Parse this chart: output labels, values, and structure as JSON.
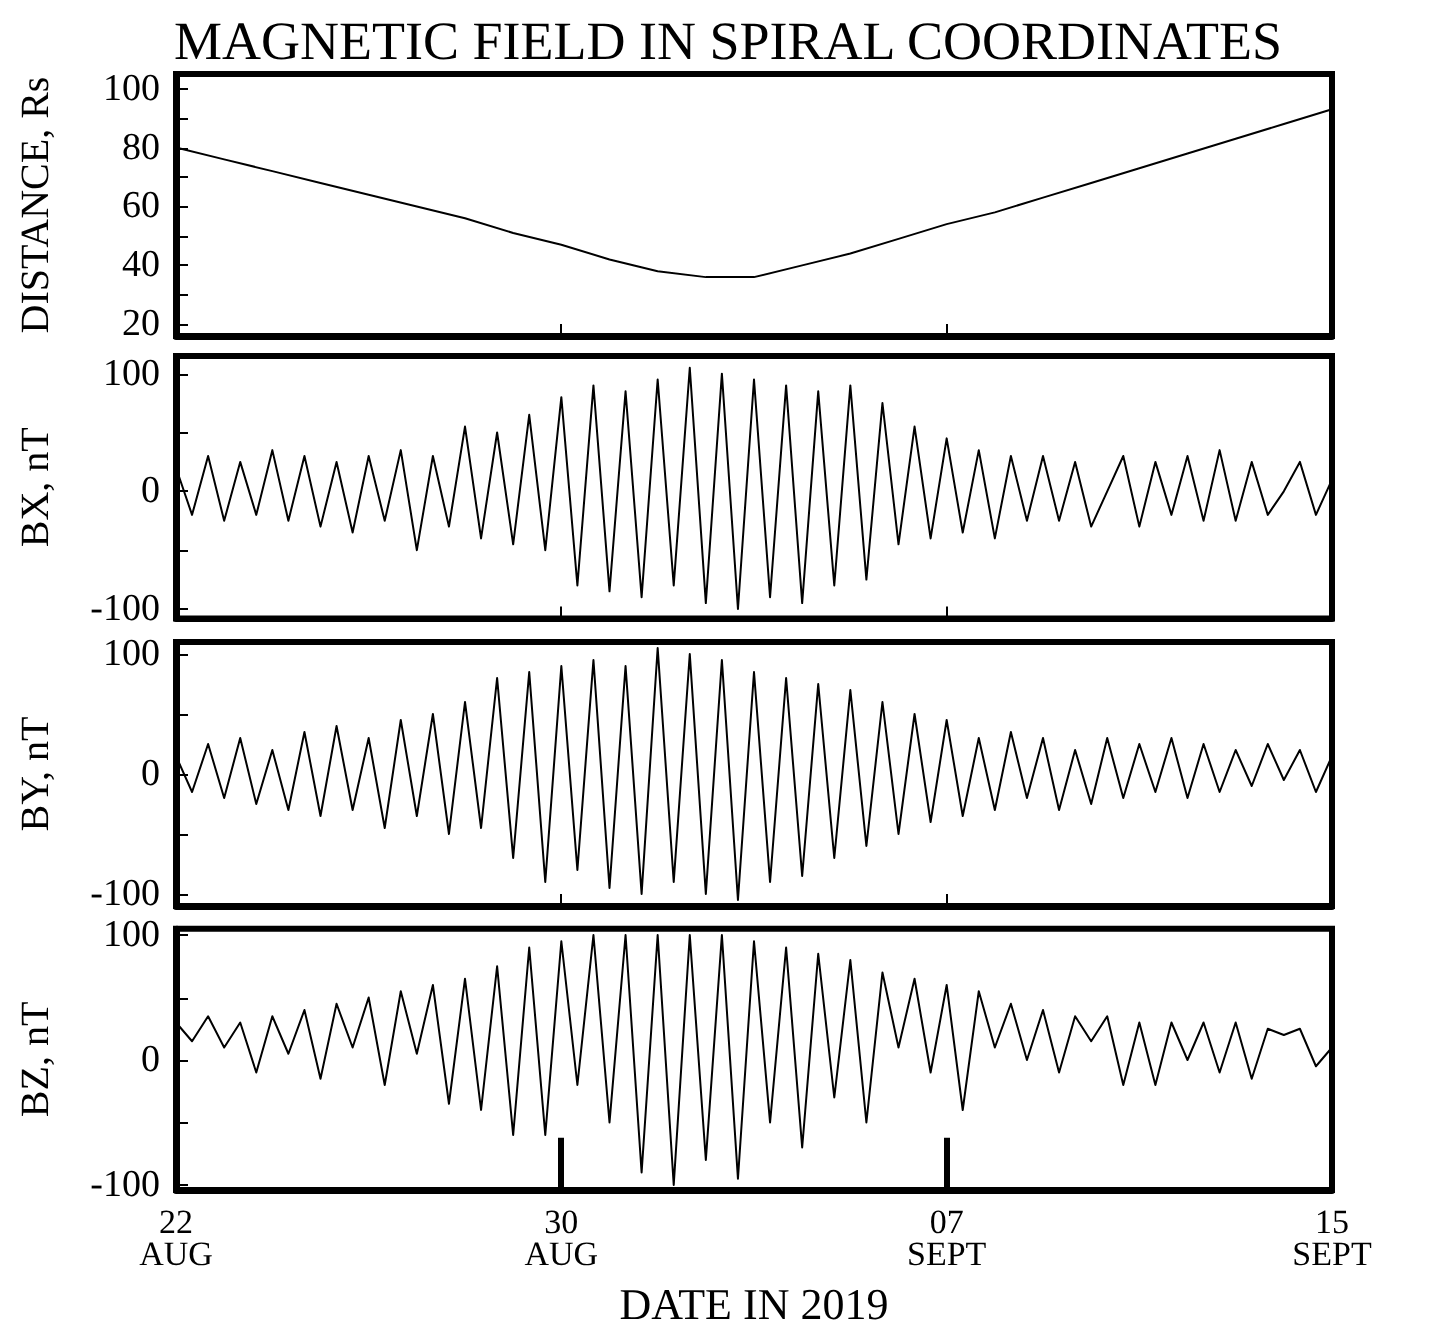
{
  "chart_data": [
    {
      "type": "line",
      "title": "MAGNETIC FIELD IN SPIRAL COORDINATES",
      "ylabel": "DISTANCE, Rs",
      "tick_labels": "y",
      "xlim": [
        "2019-08-22",
        "2019-09-15"
      ],
      "xticks": [
        {
          "value": "2019-08-22",
          "label": null
        },
        {
          "value": "2019-08-30",
          "label": null
        },
        {
          "value": "2019-09-07",
          "label": null
        },
        {
          "value": "2019-09-15",
          "label": null
        }
      ],
      "ylim": [
        16,
        105
      ],
      "yticks": [
        20,
        {
          "value": 30,
          "label": null
        },
        40,
        {
          "value": 50,
          "label": null
        },
        60,
        {
          "value": 70,
          "label": null
        },
        80,
        {
          "value": 90,
          "label": null
        },
        100
      ],
      "x": [
        "2019-08-22",
        "2019-08-23",
        "2019-08-24",
        "2019-08-25",
        "2019-08-26",
        "2019-08-27",
        "2019-08-28",
        "2019-08-29",
        "2019-08-30",
        "2019-08-31",
        "2019-09-01",
        "2019-09-02",
        "2019-09-03",
        "2019-09-04",
        "2019-09-05",
        "2019-09-06",
        "2019-09-07",
        "2019-09-08",
        "2019-09-09",
        "2019-09-10",
        "2019-09-11",
        "2019-09-12",
        "2019-09-13",
        "2019-09-14",
        "2019-09-15"
      ],
      "series": [
        {
          "color": "#000000",
          "values": [
            80,
            76,
            72,
            68,
            64,
            60,
            56,
            51,
            47,
            42,
            38,
            36,
            36,
            40,
            44,
            49,
            54,
            58,
            63,
            68,
            73,
            78,
            83,
            88,
            93
          ]
        }
      ]
    },
    {
      "type": "line",
      "ylabel": "BX, nT",
      "tick_labels": "y",
      "xlim": [
        "2019-08-22",
        "2019-09-15"
      ],
      "xticks": [
        {
          "value": "2019-08-22",
          "label": null
        },
        {
          "value": "2019-08-30",
          "label": null
        },
        {
          "value": "2019-09-07",
          "label": null
        },
        {
          "value": "2019-09-15",
          "label": null
        }
      ],
      "ylim": [
        -108,
        115
      ],
      "yticks": [
        -100,
        {
          "value": -50,
          "label": null
        },
        0,
        {
          "value": 50,
          "label": null
        },
        100
      ],
      "x": [
        "2019-08-22T00:00",
        "2019-08-22T08:00",
        "2019-08-22T16:00",
        "2019-08-23T00:00",
        "2019-08-23T08:00",
        "2019-08-23T16:00",
        "2019-08-24T00:00",
        "2019-08-24T08:00",
        "2019-08-24T16:00",
        "2019-08-25T00:00",
        "2019-08-25T08:00",
        "2019-08-25T16:00",
        "2019-08-26T00:00",
        "2019-08-26T08:00",
        "2019-08-26T16:00",
        "2019-08-27T00:00",
        "2019-08-27T08:00",
        "2019-08-27T16:00",
        "2019-08-28T00:00",
        "2019-08-28T08:00",
        "2019-08-28T16:00",
        "2019-08-29T00:00",
        "2019-08-29T08:00",
        "2019-08-29T16:00",
        "2019-08-30T00:00",
        "2019-08-30T08:00",
        "2019-08-30T16:00",
        "2019-08-31T00:00",
        "2019-08-31T08:00",
        "2019-08-31T16:00",
        "2019-09-01T00:00",
        "2019-09-01T08:00",
        "2019-09-01T16:00",
        "2019-09-02T00:00",
        "2019-09-02T08:00",
        "2019-09-02T16:00",
        "2019-09-03T00:00",
        "2019-09-03T08:00",
        "2019-09-03T16:00",
        "2019-09-04T00:00",
        "2019-09-04T08:00",
        "2019-09-04T16:00",
        "2019-09-05T00:00",
        "2019-09-05T08:00",
        "2019-09-05T16:00",
        "2019-09-06T00:00",
        "2019-09-06T08:00",
        "2019-09-06T16:00",
        "2019-09-07T00:00",
        "2019-09-07T08:00",
        "2019-09-07T16:00",
        "2019-09-08T00:00",
        "2019-09-08T08:00",
        "2019-09-08T16:00",
        "2019-09-09T00:00",
        "2019-09-09T08:00",
        "2019-09-09T16:00",
        "2019-09-10T00:00",
        "2019-09-10T08:00",
        "2019-09-10T16:00",
        "2019-09-11T00:00",
        "2019-09-11T08:00",
        "2019-09-11T16:00",
        "2019-09-12T00:00",
        "2019-09-12T08:00",
        "2019-09-12T16:00",
        "2019-09-13T00:00",
        "2019-09-13T08:00",
        "2019-09-13T16:00",
        "2019-09-14T00:00",
        "2019-09-14T08:00",
        "2019-09-14T16:00",
        "2019-09-15T00:00"
      ],
      "series": [
        {
          "color": "#000000",
          "values": [
            20,
            -20,
            30,
            -25,
            25,
            -20,
            35,
            -25,
            30,
            -30,
            25,
            -35,
            30,
            -25,
            35,
            -50,
            30,
            -30,
            55,
            -40,
            50,
            -45,
            65,
            -50,
            80,
            -80,
            90,
            -85,
            85,
            -90,
            95,
            -80,
            105,
            -95,
            100,
            -100,
            95,
            -90,
            90,
            -95,
            85,
            -80,
            90,
            -75,
            75,
            -45,
            55,
            -40,
            45,
            -35,
            35,
            -40,
            30,
            -25,
            30,
            -25,
            25,
            -30,
            0,
            30,
            -30,
            25,
            -20,
            30,
            -25,
            35,
            -25,
            25,
            -20,
            0,
            25,
            -20,
            10
          ]
        }
      ]
    },
    {
      "type": "line",
      "ylabel": "BY, nT",
      "tick_labels": "y",
      "xlim": [
        "2019-08-22",
        "2019-09-15"
      ],
      "xticks": [
        {
          "value": "2019-08-22",
          "label": null
        },
        {
          "value": "2019-08-30",
          "label": null
        },
        {
          "value": "2019-09-07",
          "label": null
        },
        {
          "value": "2019-09-15",
          "label": null
        }
      ],
      "ylim": [
        -110,
        110
      ],
      "yticks": [
        -100,
        {
          "value": -50,
          "label": null
        },
        0,
        {
          "value": 50,
          "label": null
        },
        100
      ],
      "x": [
        "2019-08-22T00:00",
        "2019-08-22T08:00",
        "2019-08-22T16:00",
        "2019-08-23T00:00",
        "2019-08-23T08:00",
        "2019-08-23T16:00",
        "2019-08-24T00:00",
        "2019-08-24T08:00",
        "2019-08-24T16:00",
        "2019-08-25T00:00",
        "2019-08-25T08:00",
        "2019-08-25T16:00",
        "2019-08-26T00:00",
        "2019-08-26T08:00",
        "2019-08-26T16:00",
        "2019-08-27T00:00",
        "2019-08-27T08:00",
        "2019-08-27T16:00",
        "2019-08-28T00:00",
        "2019-08-28T08:00",
        "2019-08-28T16:00",
        "2019-08-29T00:00",
        "2019-08-29T08:00",
        "2019-08-29T16:00",
        "2019-08-30T00:00",
        "2019-08-30T08:00",
        "2019-08-30T16:00",
        "2019-08-31T00:00",
        "2019-08-31T08:00",
        "2019-08-31T16:00",
        "2019-09-01T00:00",
        "2019-09-01T08:00",
        "2019-09-01T16:00",
        "2019-09-02T00:00",
        "2019-09-02T08:00",
        "2019-09-02T16:00",
        "2019-09-03T00:00",
        "2019-09-03T08:00",
        "2019-09-03T16:00",
        "2019-09-04T00:00",
        "2019-09-04T08:00",
        "2019-09-04T16:00",
        "2019-09-05T00:00",
        "2019-09-05T08:00",
        "2019-09-05T16:00",
        "2019-09-06T00:00",
        "2019-09-06T08:00",
        "2019-09-06T16:00",
        "2019-09-07T00:00",
        "2019-09-07T08:00",
        "2019-09-07T16:00",
        "2019-09-08T00:00",
        "2019-09-08T08:00",
        "2019-09-08T16:00",
        "2019-09-09T00:00",
        "2019-09-09T08:00",
        "2019-09-09T16:00",
        "2019-09-10T00:00",
        "2019-09-10T08:00",
        "2019-09-10T16:00",
        "2019-09-11T00:00",
        "2019-09-11T08:00",
        "2019-09-11T16:00",
        "2019-09-12T00:00",
        "2019-09-12T08:00",
        "2019-09-12T16:00",
        "2019-09-13T00:00",
        "2019-09-13T08:00",
        "2019-09-13T16:00",
        "2019-09-14T00:00",
        "2019-09-14T08:00",
        "2019-09-14T16:00",
        "2019-09-15T00:00"
      ],
      "series": [
        {
          "color": "#000000",
          "values": [
            15,
            -15,
            25,
            -20,
            30,
            -25,
            20,
            -30,
            35,
            -35,
            40,
            -30,
            30,
            -45,
            45,
            -35,
            50,
            -50,
            60,
            -45,
            80,
            -70,
            85,
            -90,
            90,
            -80,
            95,
            -95,
            90,
            -100,
            105,
            -90,
            100,
            -100,
            95,
            -105,
            85,
            -90,
            80,
            -85,
            75,
            -70,
            70,
            -60,
            60,
            -50,
            50,
            -40,
            45,
            -35,
            30,
            -30,
            35,
            -20,
            30,
            -30,
            20,
            -25,
            30,
            -20,
            25,
            -15,
            30,
            -20,
            25,
            -15,
            20,
            -10,
            25,
            -5,
            20,
            -15,
            15
          ]
        }
      ]
    },
    {
      "type": "line",
      "ylabel": "BZ, nT",
      "xlabel": "DATE IN 2019",
      "xlim": [
        "2019-08-22",
        "2019-09-15"
      ],
      "xticks": [
        {
          "value": "2019-08-22",
          "label": "22\nAUG"
        },
        {
          "value": "2019-08-30",
          "label": "30\nAUG"
        },
        {
          "value": "2019-09-07",
          "label": "07\nSEPT"
        },
        {
          "value": "2019-09-15",
          "label": "15\nSEPT"
        }
      ],
      "ylim": [
        -104,
        105
      ],
      "yticks": [
        -100,
        {
          "value": -50,
          "label": null
        },
        0,
        {
          "value": 50,
          "label": null
        },
        100
      ],
      "x": [
        "2019-08-22T00:00",
        "2019-08-22T08:00",
        "2019-08-22T16:00",
        "2019-08-23T00:00",
        "2019-08-23T08:00",
        "2019-08-23T16:00",
        "2019-08-24T00:00",
        "2019-08-24T08:00",
        "2019-08-24T16:00",
        "2019-08-25T00:00",
        "2019-08-25T08:00",
        "2019-08-25T16:00",
        "2019-08-26T00:00",
        "2019-08-26T08:00",
        "2019-08-26T16:00",
        "2019-08-27T00:00",
        "2019-08-27T08:00",
        "2019-08-27T16:00",
        "2019-08-28T00:00",
        "2019-08-28T08:00",
        "2019-08-28T16:00",
        "2019-08-29T00:00",
        "2019-08-29T08:00",
        "2019-08-29T16:00",
        "2019-08-30T00:00",
        "2019-08-30T08:00",
        "2019-08-30T16:00",
        "2019-08-31T00:00",
        "2019-08-31T08:00",
        "2019-08-31T16:00",
        "2019-09-01T00:00",
        "2019-09-01T08:00",
        "2019-09-01T16:00",
        "2019-09-02T00:00",
        "2019-09-02T08:00",
        "2019-09-02T16:00",
        "2019-09-03T00:00",
        "2019-09-03T08:00",
        "2019-09-03T16:00",
        "2019-09-04T00:00",
        "2019-09-04T08:00",
        "2019-09-04T16:00",
        "2019-09-05T00:00",
        "2019-09-05T08:00",
        "2019-09-05T16:00",
        "2019-09-06T00:00",
        "2019-09-06T08:00",
        "2019-09-06T16:00",
        "2019-09-07T00:00",
        "2019-09-07T08:00",
        "2019-09-07T16:00",
        "2019-09-08T00:00",
        "2019-09-08T08:00",
        "2019-09-08T16:00",
        "2019-09-09T00:00",
        "2019-09-09T08:00",
        "2019-09-09T16:00",
        "2019-09-10T00:00",
        "2019-09-10T08:00",
        "2019-09-10T16:00",
        "2019-09-11T00:00",
        "2019-09-11T08:00",
        "2019-09-11T16:00",
        "2019-09-12T00:00",
        "2019-09-12T08:00",
        "2019-09-12T16:00",
        "2019-09-13T00:00",
        "2019-09-13T08:00",
        "2019-09-13T16:00",
        "2019-09-14T00:00",
        "2019-09-14T08:00",
        "2019-09-14T16:00",
        "2019-09-15T00:00"
      ],
      "series": [
        {
          "color": "#000000",
          "values": [
            30,
            15,
            35,
            10,
            30,
            -10,
            35,
            5,
            40,
            -15,
            45,
            10,
            50,
            -20,
            55,
            5,
            60,
            -35,
            65,
            -40,
            75,
            -60,
            90,
            -60,
            95,
            -20,
            100,
            -50,
            100,
            -90,
            100,
            -100,
            100,
            -80,
            100,
            -95,
            95,
            -50,
            90,
            -70,
            85,
            -30,
            80,
            -50,
            70,
            10,
            65,
            -10,
            60,
            -40,
            55,
            10,
            45,
            0,
            40,
            -10,
            35,
            15,
            35,
            -20,
            30,
            -20,
            30,
            0,
            30,
            -10,
            30,
            -15,
            25,
            20,
            25,
            -5,
            10
          ]
        }
      ],
      "ref_lines": [
        {
          "axis": "x",
          "value": "2019-08-30",
          "color": "#000000"
        },
        {
          "axis": "x",
          "value": "2019-09-07",
          "color": "#000000"
        }
      ]
    }
  ]
}
